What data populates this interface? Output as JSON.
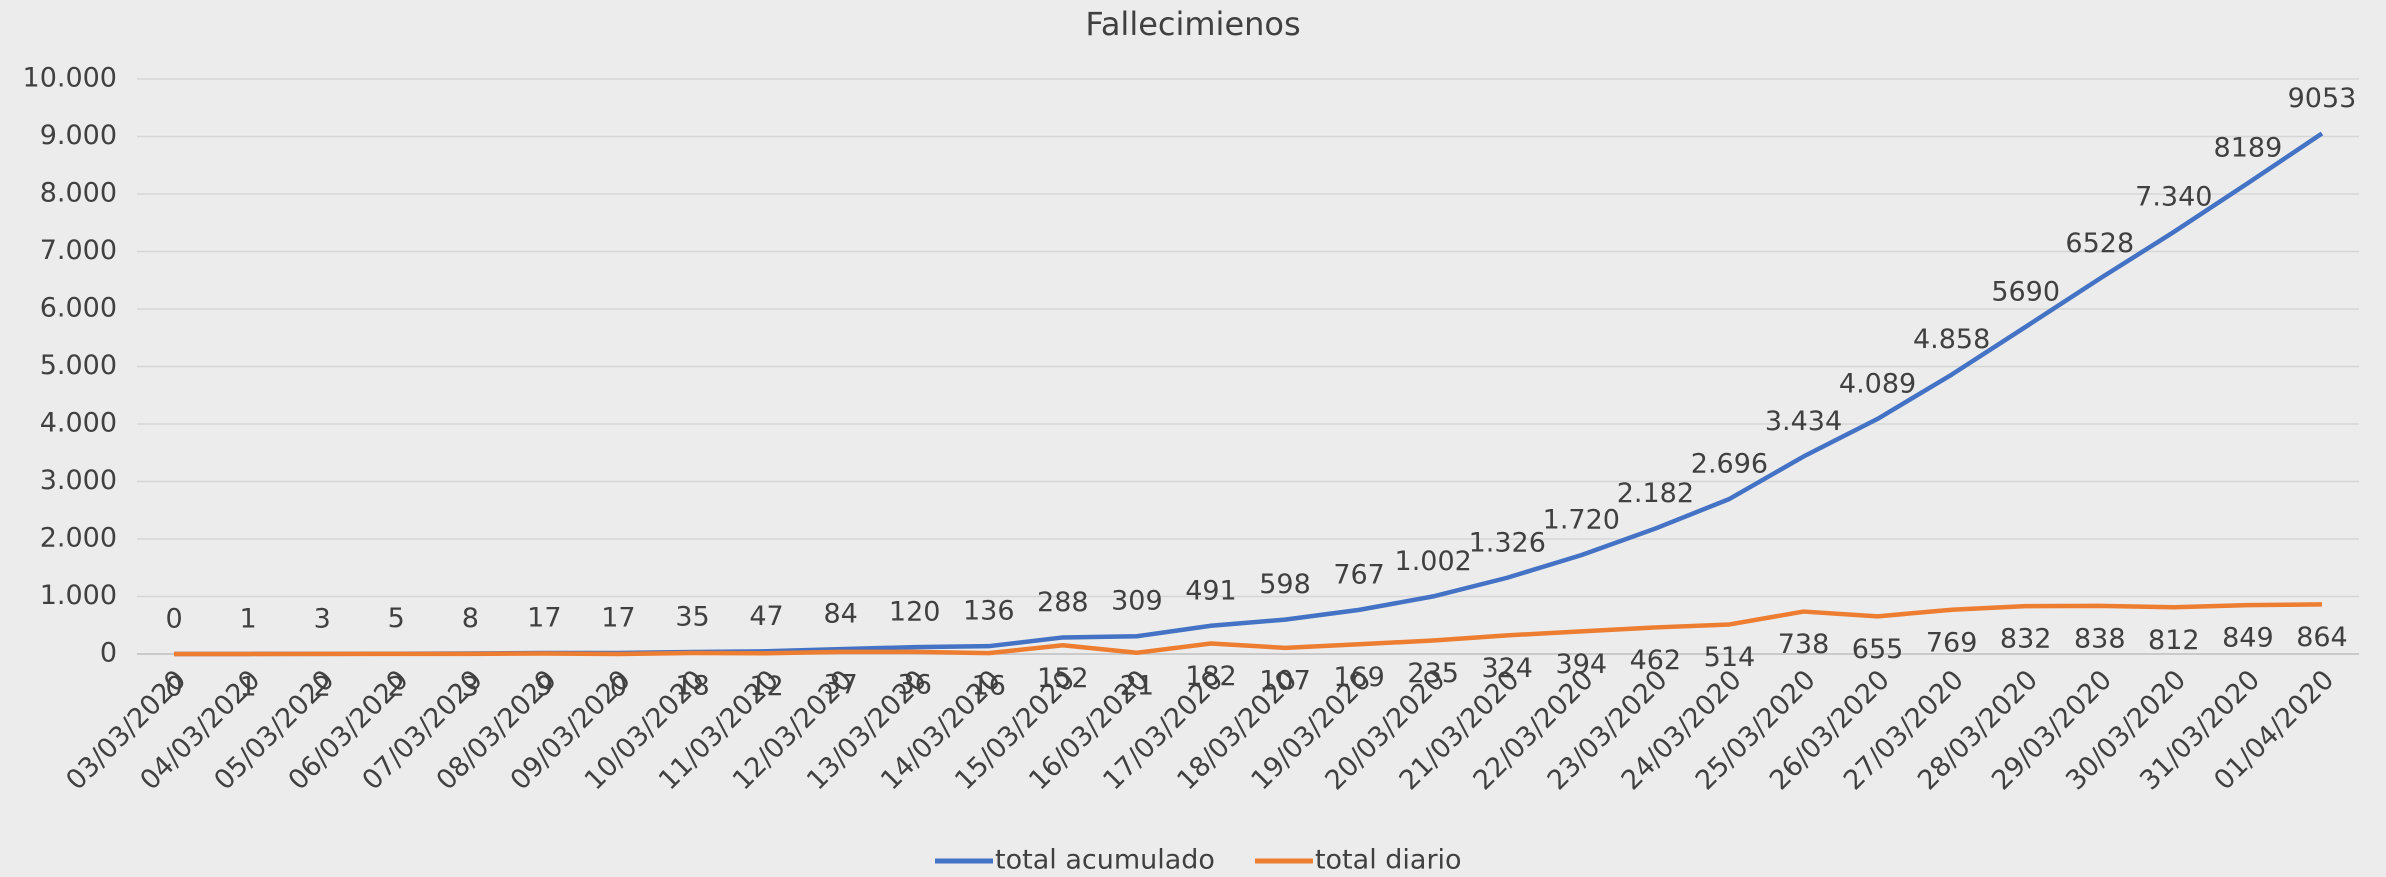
{
  "chart_data": {
    "type": "line",
    "title": "Fallecimienos",
    "categories": [
      "03/03/2020",
      "04/03/2020",
      "05/03/2020",
      "06/03/2020",
      "07/03/2020",
      "08/03/2020",
      "09/03/2020",
      "10/03/2020",
      "11/03/2020",
      "12/03/2020",
      "13/03/2020",
      "14/03/2020",
      "15/03/2020",
      "16/03/2020",
      "17/03/2020",
      "18/03/2020",
      "19/03/2020",
      "20/03/2020",
      "21/03/2020",
      "22/03/2020",
      "23/03/2020",
      "24/03/2020",
      "25/03/2020",
      "26/03/2020",
      "27/03/2020",
      "28/03/2020",
      "29/03/2020",
      "30/03/2020",
      "31/03/2020",
      "01/04/2020"
    ],
    "series": [
      {
        "name": "total acumulado",
        "color": "#4472c4",
        "values": [
          0,
          1,
          3,
          5,
          8,
          17,
          17,
          35,
          47,
          84,
          120,
          136,
          288,
          309,
          491,
          598,
          767,
          1002,
          1326,
          1720,
          2182,
          2696,
          3434,
          4089,
          4858,
          5690,
          6528,
          7340,
          8189,
          9053
        ],
        "value_labels": [
          "0",
          "1",
          "3",
          "5",
          "8",
          "17",
          "17",
          "35",
          "47",
          "84",
          "120",
          "136",
          "288",
          "309",
          "491",
          "598",
          "767",
          "1.002",
          "1.326",
          "1.720",
          "2.182",
          "2.696",
          "3.434",
          "4.089",
          "4.858",
          "5690",
          "6528",
          "7.340",
          "8189",
          "9053"
        ]
      },
      {
        "name": "total diario",
        "color": "#ed7d31",
        "values": [
          0,
          1,
          2,
          2,
          3,
          9,
          0,
          18,
          12,
          37,
          36,
          16,
          152,
          21,
          182,
          107,
          169,
          235,
          324,
          394,
          462,
          514,
          738,
          655,
          769,
          832,
          838,
          812,
          849,
          864
        ]
      }
    ],
    "ylim": [
      0,
      10000
    ],
    "yticks": [
      0,
      {
        "value": 1000,
        "label": "1.000"
      },
      {
        "value": 2000,
        "label": "2.000"
      },
      {
        "value": 3000,
        "label": "3.000"
      },
      {
        "value": 4000,
        "label": "4.000"
      },
      {
        "value": 5000,
        "label": "5.000"
      },
      {
        "value": 6000,
        "label": "6.000"
      },
      {
        "value": 7000,
        "label": "7.000"
      },
      {
        "value": 8000,
        "label": "8.000"
      },
      {
        "value": 9000,
        "label": "9.000"
      },
      {
        "value": 10000,
        "label": "10.000"
      }
    ],
    "grid": true,
    "legend": "bottom"
  }
}
